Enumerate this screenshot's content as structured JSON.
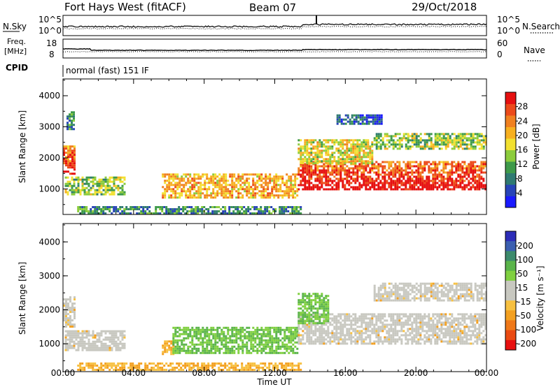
{
  "header": {
    "station": "Fort Hays West (fitACF)",
    "beam": "Beam 07",
    "date": "29/Oct/2018"
  },
  "noise_panel": {
    "left_label": "N.Sky",
    "right_label": "N.Search",
    "ticks": [
      "10^5",
      "10^0"
    ]
  },
  "freq_panel": {
    "left_label_1": "Freq.",
    "left_label_2": "[MHz]",
    "right_label": "Nave",
    "left_ticks": [
      "18",
      "8"
    ],
    "right_ticks": [
      "60",
      "0"
    ]
  },
  "cpid": {
    "label": "CPID",
    "mode": "normal (fast) 151 IF"
  },
  "colors": {
    "power": [
      "#1a1aff",
      "#2844b8",
      "#2f7a72",
      "#3e9a4a",
      "#8ccc3c",
      "#f2e030",
      "#f7b020",
      "#f08020",
      "#ec4a1a",
      "#e61010"
    ],
    "velocity_pos": [
      "#2d2db8",
      "#3b5fb0",
      "#3c8a6c",
      "#5ab44a",
      "#80d040"
    ],
    "velocity_neg": [
      "#f7c040",
      "#f3a020",
      "#ef7818",
      "#ea4a12",
      "#e81010"
    ],
    "ground_scatter": "#c8c8c0"
  },
  "chart_data": [
    {
      "type": "heatmap",
      "name": "power",
      "ylabel": "Slant Range [km]",
      "colorbar_label": "Power [dB]",
      "colorbar_ticks": [
        "28",
        "24",
        "20",
        "16",
        "12",
        "8",
        "4"
      ],
      "y_ticks": [
        "4000",
        "3000",
        "2000",
        "1000"
      ],
      "y_tick_values": [
        4000,
        3000,
        2000,
        1000
      ],
      "ylim": [
        180,
        4540
      ],
      "x_ticks": [
        "00:00",
        "04:00",
        "08:00",
        "12:00",
        "16:00",
        "20:00",
        "00:00"
      ],
      "xlim_hours": [
        0,
        24
      ],
      "regions": [
        {
          "t": [
            0.0,
            0.6
          ],
          "r": [
            1500,
            2400
          ],
          "level": 0.85
        },
        {
          "t": [
            0.2,
            0.6
          ],
          "r": [
            2900,
            3500
          ],
          "level": 0.3
        },
        {
          "t": [
            0.1,
            3.5
          ],
          "r": [
            800,
            1400
          ],
          "level": 0.45
        },
        {
          "t": [
            0.8,
            13.5
          ],
          "r": [
            200,
            450
          ],
          "level": 0.3
        },
        {
          "t": [
            5.6,
            13.3
          ],
          "r": [
            700,
            1500
          ],
          "level": 0.65
        },
        {
          "t": [
            13.3,
            24.0
          ],
          "r": [
            1000,
            1900
          ],
          "level": 0.9
        },
        {
          "t": [
            13.3,
            17.5
          ],
          "r": [
            1800,
            2600
          ],
          "level": 0.55
        },
        {
          "t": [
            17.6,
            24.0
          ],
          "r": [
            2300,
            2800
          ],
          "level": 0.45
        },
        {
          "t": [
            15.5,
            18.0
          ],
          "r": [
            3100,
            3400
          ],
          "level": 0.2
        }
      ]
    },
    {
      "type": "heatmap",
      "name": "velocity",
      "ylabel": "Slant Range [km]",
      "colorbar_label": "Velocity [m s⁻¹]",
      "colorbar_ticks": [
        "200",
        "100",
        "50",
        "15",
        "-15",
        "-50",
        "-100",
        "-200"
      ],
      "y_ticks": [
        "4000",
        "3000",
        "2000",
        "1000"
      ],
      "y_tick_values": [
        4000,
        3000,
        2000,
        1000
      ],
      "ylim": [
        180,
        4540
      ],
      "xlabel": "Time UT",
      "x_ticks": [
        "00:00",
        "04:00",
        "08:00",
        "12:00",
        "16:00",
        "20:00",
        "00:00"
      ],
      "xlim_hours": [
        0,
        24
      ],
      "regions": [
        {
          "t": [
            0.0,
            0.6
          ],
          "r": [
            1500,
            2400
          ],
          "kind": "ground"
        },
        {
          "t": [
            0.1,
            3.5
          ],
          "r": [
            800,
            1400
          ],
          "kind": "ground"
        },
        {
          "t": [
            0.8,
            13.5
          ],
          "r": [
            250,
            450
          ],
          "kind": "negative"
        },
        {
          "t": [
            5.6,
            6.2
          ],
          "r": [
            700,
            1100
          ],
          "kind": "negative"
        },
        {
          "t": [
            6.2,
            13.3
          ],
          "r": [
            700,
            1500
          ],
          "kind": "positive"
        },
        {
          "t": [
            13.3,
            24.0
          ],
          "r": [
            1000,
            1900
          ],
          "kind": "ground"
        },
        {
          "t": [
            13.3,
            15.0
          ],
          "r": [
            1600,
            2500
          ],
          "kind": "positive"
        },
        {
          "t": [
            17.6,
            24.0
          ],
          "r": [
            2300,
            2800
          ],
          "kind": "ground"
        }
      ]
    }
  ]
}
